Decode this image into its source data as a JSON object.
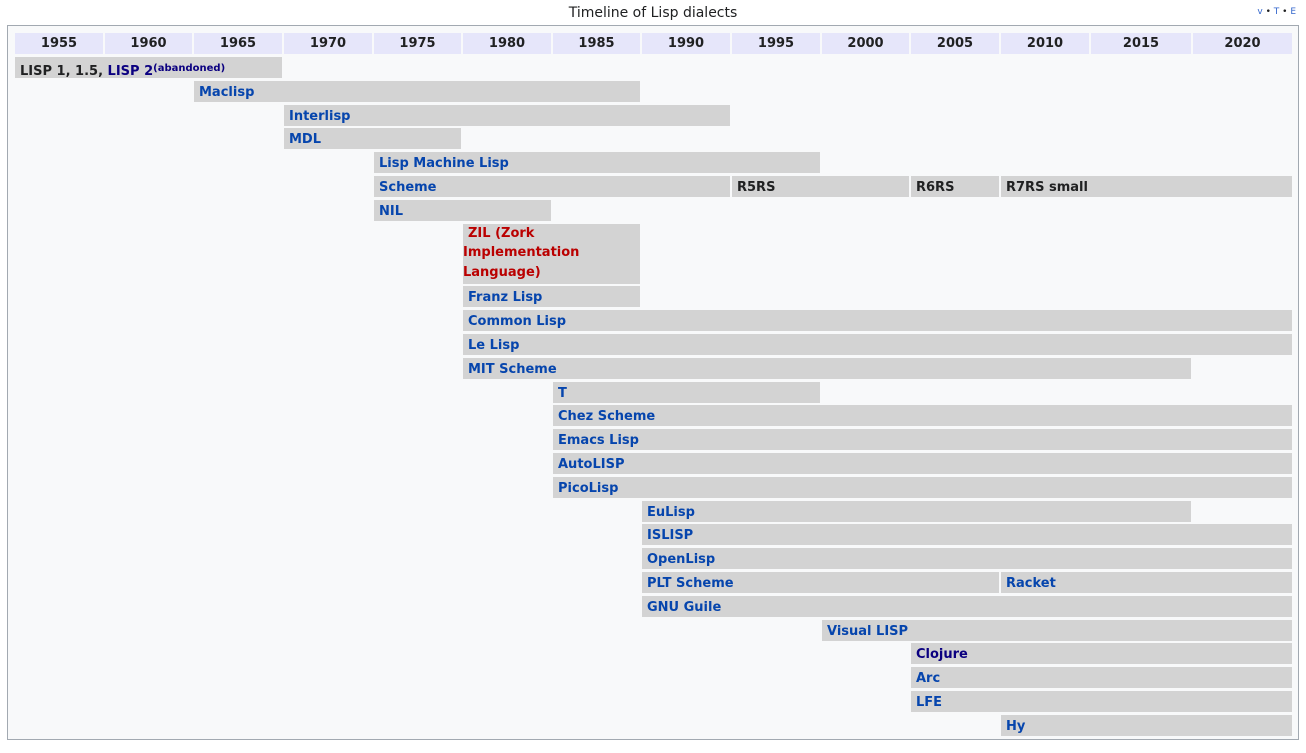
{
  "title": "Timeline of Lisp dialects",
  "vte": {
    "v": "v",
    "t": "T",
    "e": "E",
    "sep": " • "
  },
  "chart_data": {
    "type": "gantt",
    "years": [
      "1955",
      "1960",
      "1965",
      "1970",
      "1975",
      "1980",
      "1985",
      "1990",
      "1995",
      "2000",
      "2005",
      "2010",
      "2015",
      "2020"
    ],
    "rows": [
      [
        {
          "label": "LISP 1, 1.5,",
          "link": "LISP 2",
          "sup": "(abandoned)",
          "start": 1955,
          "end": 1970,
          "style": "plain"
        }
      ],
      [
        {
          "label": "Maclisp",
          "start": 1965,
          "end": 1990
        }
      ],
      [
        {
          "label": "Interlisp",
          "start": 1970,
          "end": 1995
        }
      ],
      [
        {
          "label": "MDL",
          "start": 1970,
          "end": 1980
        }
      ],
      [
        {
          "label": "Lisp Machine Lisp",
          "start": 1975,
          "end": 2000
        }
      ],
      [
        {
          "label": "Scheme",
          "start": 1975,
          "end": 1995
        },
        {
          "label": "R5RS",
          "start": 1995,
          "end": 2005,
          "style": "plain"
        },
        {
          "label": "R6RS",
          "start": 2005,
          "end": 2010,
          "style": "plain"
        },
        {
          "label": "R7RS small",
          "start": 2010,
          "end": 2025,
          "style": "plain"
        }
      ],
      [
        {
          "label": "NIL",
          "start": 1975,
          "end": 1985
        }
      ],
      [
        {
          "label": "ZIL (Zork",
          "lines": [
            "Implementation",
            "Language)"
          ],
          "start": 1980,
          "end": 1990,
          "style": "red"
        }
      ],
      [
        {
          "label": "Franz Lisp",
          "start": 1980,
          "end": 1990
        }
      ],
      [
        {
          "label": "Common Lisp",
          "start": 1980,
          "end": 2025
        }
      ],
      [
        {
          "label": "Le Lisp",
          "start": 1980,
          "end": 2025
        }
      ],
      [
        {
          "label": "MIT Scheme",
          "start": 1980,
          "end": 2020
        }
      ],
      [
        {
          "label": "T",
          "start": 1985,
          "end": 2000
        }
      ],
      [
        {
          "label": "Chez Scheme",
          "start": 1985,
          "end": 2025
        }
      ],
      [
        {
          "label": "Emacs Lisp",
          "start": 1985,
          "end": 2025
        }
      ],
      [
        {
          "label": "AutoLISP",
          "start": 1985,
          "end": 2025
        }
      ],
      [
        {
          "label": "PicoLisp",
          "start": 1985,
          "end": 2025
        }
      ],
      [
        {
          "label": "EuLisp",
          "start": 1990,
          "end": 2020
        }
      ],
      [
        {
          "label": "ISLISP",
          "start": 1990,
          "end": 2025
        }
      ],
      [
        {
          "label": "OpenLisp",
          "start": 1990,
          "end": 2025
        }
      ],
      [
        {
          "label": "PLT Scheme",
          "start": 1990,
          "end": 2010
        },
        {
          "label": "Racket",
          "start": 2010,
          "end": 2025
        }
      ],
      [
        {
          "label": "GNU Guile",
          "start": 1990,
          "end": 2025
        }
      ],
      [
        {
          "label": "Visual LISP",
          "start": 2000,
          "end": 2025
        }
      ],
      [
        {
          "label": "Clojure",
          "start": 2005,
          "end": 2025,
          "style": "dark"
        }
      ],
      [
        {
          "label": "Arc",
          "start": 2005,
          "end": 2025
        }
      ],
      [
        {
          "label": "LFE",
          "start": 2005,
          "end": 2025
        }
      ],
      [
        {
          "label": "Hy",
          "start": 2010,
          "end": 2025
        }
      ]
    ]
  }
}
